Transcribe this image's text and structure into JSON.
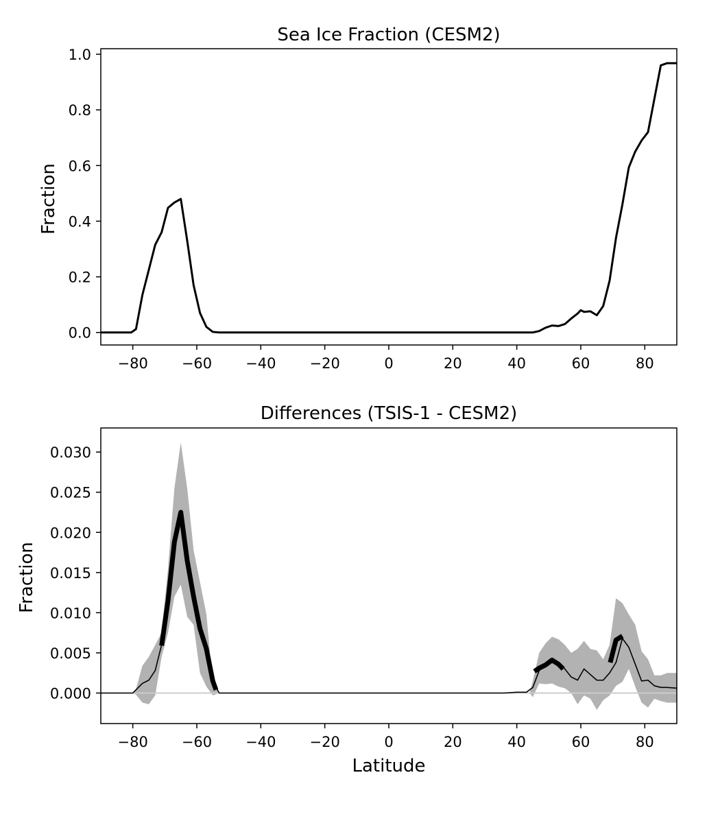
{
  "chart_data": [
    {
      "type": "line",
      "title": "Sea Ice Fraction (CESM2)",
      "xlabel": "",
      "ylabel": "Fraction",
      "xlim": [
        -90,
        90
      ],
      "ylim": [
        -0.045,
        1.02
      ],
      "xticks": [
        -80,
        -60,
        -40,
        -20,
        0,
        20,
        40,
        60,
        80
      ],
      "xtick_labels": [
        "−80",
        "−60",
        "−40",
        "−20",
        "0",
        "20",
        "40",
        "60",
        "80"
      ],
      "yticks": [
        0.0,
        0.2,
        0.4,
        0.6,
        0.8,
        1.0
      ],
      "ytick_labels": [
        "0.0",
        "0.2",
        "0.4",
        "0.6",
        "0.8",
        "1.0"
      ],
      "grid": false,
      "series": [
        {
          "color": "#000000",
          "x": [
            -90,
            -80.5,
            -79,
            -77,
            -75,
            -73,
            -71,
            -69,
            -67,
            -65,
            -63,
            -61,
            -59,
            -57,
            -55,
            -53,
            -51,
            -45,
            -40,
            0,
            40,
            43,
            45,
            47,
            49,
            51,
            53,
            55,
            57,
            59,
            60,
            61,
            63,
            65,
            67,
            69,
            71,
            73,
            75,
            77,
            79,
            81,
            83,
            85,
            87,
            90
          ],
          "y": [
            0.0,
            0.0,
            0.012,
            0.135,
            0.225,
            0.315,
            0.36,
            0.448,
            0.467,
            0.48,
            0.33,
            0.17,
            0.07,
            0.02,
            0.002,
            0.0,
            0.0,
            0.0,
            0.0,
            0.0,
            0.0,
            0.0,
            0.0,
            0.005,
            0.017,
            0.025,
            0.023,
            0.03,
            0.05,
            0.068,
            0.08,
            0.074,
            0.076,
            0.062,
            0.095,
            0.186,
            0.34,
            0.46,
            0.593,
            0.65,
            0.69,
            0.72,
            0.84,
            0.96,
            0.968,
            0.968
          ]
        }
      ]
    },
    {
      "type": "line",
      "title": "Differences (TSIS-1 - CESM2)",
      "xlabel": "Latitude",
      "ylabel": "Fraction",
      "xlim": [
        -90,
        90
      ],
      "ylim": [
        -0.0038,
        0.033
      ],
      "xticks": [
        -80,
        -60,
        -40,
        -20,
        0,
        20,
        40,
        60,
        80
      ],
      "xtick_labels": [
        "−80",
        "−60",
        "−40",
        "−20",
        "0",
        "20",
        "40",
        "60",
        "80"
      ],
      "yticks": [
        0.0,
        0.005,
        0.01,
        0.015,
        0.02,
        0.025,
        0.03
      ],
      "ytick_labels": [
        "0.000",
        "0.005",
        "0.010",
        "0.015",
        "0.020",
        "0.025",
        "0.030"
      ],
      "grid": false,
      "zero_line": {
        "y": 0,
        "color": "#cccccc"
      },
      "band": {
        "color": "#b2b2b2",
        "x": [
          -80,
          -79,
          -77,
          -75,
          -73,
          -71,
          -69,
          -67,
          -65,
          -63,
          -61,
          -59,
          -57,
          -55,
          -53,
          44,
          45,
          47,
          49,
          51,
          53,
          55,
          57,
          59,
          61,
          63,
          65,
          67,
          69,
          71,
          73,
          75,
          77,
          79,
          81,
          83,
          85,
          87,
          90
        ],
        "upper": [
          0.0,
          0.0005,
          0.0034,
          0.0045,
          0.006,
          0.0075,
          0.0155,
          0.0255,
          0.0312,
          0.0255,
          0.0178,
          0.0138,
          0.0098,
          0.0012,
          0.0,
          0.0,
          0.0015,
          0.005,
          0.0062,
          0.007,
          0.0067,
          0.006,
          0.005,
          0.0055,
          0.0065,
          0.0055,
          0.0053,
          0.0042,
          0.006,
          0.0118,
          0.0112,
          0.0098,
          0.0085,
          0.0052,
          0.0042,
          0.0022,
          0.0022,
          0.0025,
          0.0025
        ],
        "lower": [
          0.0,
          -0.0002,
          -0.0012,
          -0.0014,
          -0.0003,
          0.0045,
          0.0075,
          0.012,
          0.0135,
          0.0095,
          0.0085,
          0.0025,
          0.0008,
          -0.0003,
          0.0,
          0.0,
          -0.0005,
          0.0012,
          0.0011,
          0.0012,
          0.0008,
          0.0006,
          0.0,
          -0.0014,
          -0.0003,
          -0.0007,
          -0.0021,
          -0.0009,
          -0.0003,
          0.0009,
          0.0014,
          0.003,
          0.0008,
          -0.0012,
          -0.0018,
          -0.0007,
          -0.001,
          -0.0012,
          -0.0012
        ]
      },
      "series": [
        {
          "style": "thin",
          "color": "#000000",
          "x": [
            -90,
            -80,
            -79,
            -77,
            -75,
            -73,
            -71,
            -69,
            -67,
            -65,
            -63,
            -61,
            -59,
            -57,
            -55,
            -53,
            -40,
            0,
            36,
            40,
            43,
            45,
            47,
            49,
            51,
            53,
            55,
            57,
            59,
            61,
            63,
            65,
            67,
            69,
            71,
            73,
            75,
            77,
            79,
            81,
            83,
            85,
            87,
            90
          ],
          "y": [
            0.0,
            0.0,
            0.0004,
            0.0012,
            0.0016,
            0.0028,
            0.006,
            0.0115,
            0.0188,
            0.0225,
            0.0165,
            0.012,
            0.008,
            0.0055,
            0.0015,
            0.0,
            0.0,
            0.0,
            0.0,
            0.0001,
            0.0001,
            0.0007,
            0.0028,
            0.0035,
            0.0041,
            0.0038,
            0.003,
            0.002,
            0.0016,
            0.003,
            0.0023,
            0.0016,
            0.0016,
            0.0025,
            0.0038,
            0.0068,
            0.0057,
            0.0036,
            0.0015,
            0.0016,
            0.0009,
            0.0007,
            0.0007,
            0.0006
          ]
        },
        {
          "style": "thick",
          "color": "#000000",
          "x": [
            -71,
            -69,
            -67,
            -65,
            -63,
            -61,
            -59,
            -57,
            -55,
            -54
          ],
          "y": [
            0.0059,
            0.0115,
            0.0188,
            0.0225,
            0.0165,
            0.012,
            0.008,
            0.0055,
            0.0015,
            0.0004
          ]
        },
        {
          "style": "thick",
          "color": "#000000",
          "x": [
            45.5,
            47,
            49,
            51,
            53,
            54.5
          ],
          "y": [
            0.0027,
            0.0031,
            0.0035,
            0.0041,
            0.0036,
            0.003
          ]
        },
        {
          "style": "thick",
          "color": "#000000",
          "x": [
            69.2,
            71,
            73
          ],
          "y": [
            0.0038,
            0.0066,
            0.0071
          ]
        }
      ]
    }
  ]
}
